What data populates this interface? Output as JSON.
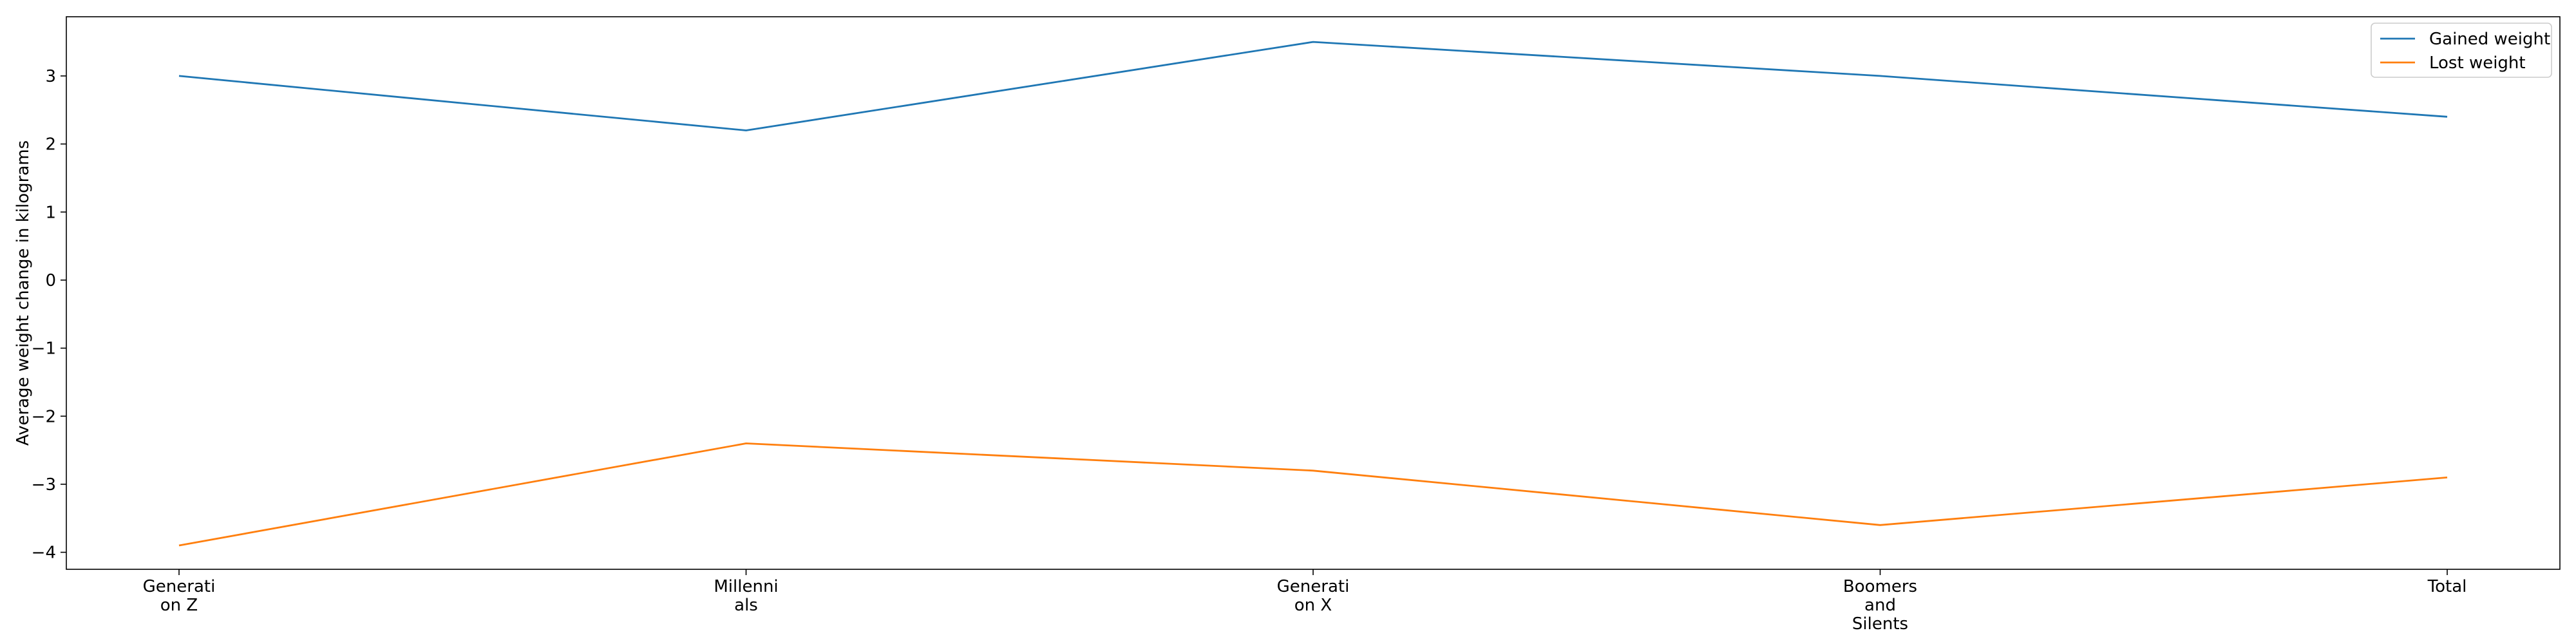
{
  "chart_data": {
    "type": "line",
    "categories": [
      [
        "Generati",
        "on Z"
      ],
      [
        "Millenni",
        "als"
      ],
      [
        "Generati",
        "on X"
      ],
      [
        "Boomers",
        "and",
        "Silents"
      ],
      [
        "Total"
      ]
    ],
    "series": [
      {
        "name": "Gained weight",
        "color": "#1f77b4",
        "values": [
          3.0,
          2.2,
          3.5,
          3.0,
          2.4
        ]
      },
      {
        "name": "Lost weight",
        "color": "#ff7f0e",
        "values": [
          -3.9,
          -2.4,
          -2.8,
          -3.6,
          -2.9
        ]
      }
    ],
    "title": "",
    "xlabel": "",
    "ylabel": "Average weight change in kilograms",
    "ylim": [
      -4.25,
      3.87
    ],
    "yticks": [
      {
        "value": 3,
        "label": "3"
      },
      {
        "value": 2,
        "label": "2"
      },
      {
        "value": 1,
        "label": "1"
      },
      {
        "value": 0,
        "label": "0"
      },
      {
        "value": -1,
        "label": "−1"
      },
      {
        "value": -2,
        "label": "−2"
      },
      {
        "value": -3,
        "label": "−3"
      },
      {
        "value": -4,
        "label": "−4"
      }
    ],
    "grid": false,
    "legend_position": "top-right"
  }
}
